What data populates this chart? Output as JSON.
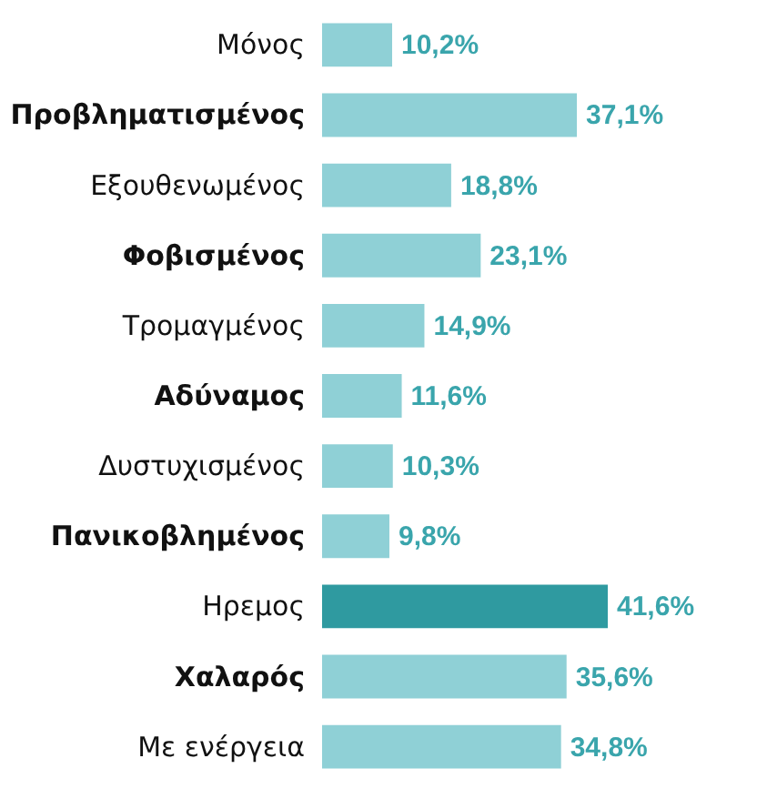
{
  "chart_data": {
    "type": "bar",
    "orientation": "horizontal",
    "categories": [
      "Μόνος",
      "Προβληματισμένος",
      "Εξουθενωμένος",
      "Φοβισμένος",
      "Τρομαγμένος",
      "Αδύναμος",
      "Δυστυχισμένος",
      "Πανικοβλημένος",
      "Ηρεμος",
      "Χαλαρός",
      "Με ενέργεια"
    ],
    "values": [
      10.2,
      37.1,
      18.8,
      23.1,
      14.9,
      11.6,
      10.3,
      9.8,
      41.6,
      35.6,
      34.8
    ],
    "value_labels": [
      "10,2%",
      "37,1%",
      "18,8%",
      "23,1%",
      "14,9%",
      "11,6%",
      "10,3%",
      "9,8%",
      "41,6%",
      "35,6%",
      "34,8%"
    ],
    "colors": [
      "#8fd0d6",
      "#8fd0d6",
      "#8fd0d6",
      "#8fd0d6",
      "#8fd0d6",
      "#8fd0d6",
      "#8fd0d6",
      "#8fd0d6",
      "#2f9aa0",
      "#8fd0d6",
      "#8fd0d6"
    ]
  }
}
